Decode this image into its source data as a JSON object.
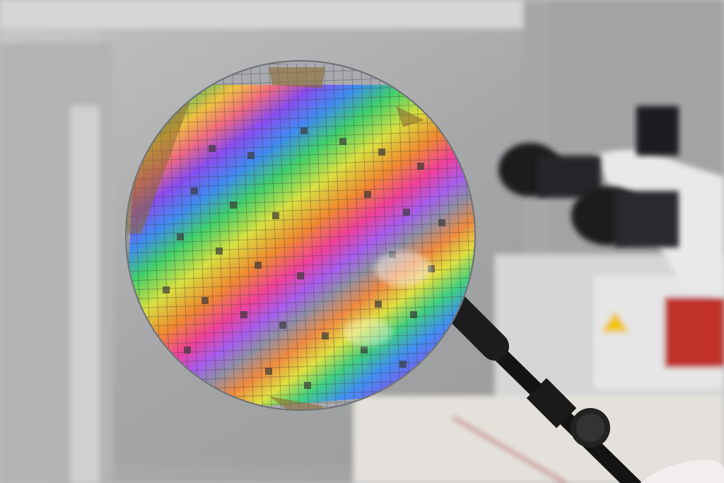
{
  "scene": {
    "subject": "silicon-wafer",
    "colors": {
      "background": "#b9b9b9",
      "background_dark": "#6f7174",
      "wafer_edge": "#8a8d90",
      "band_violet": "#7a3cf0",
      "band_blue": "#3f8cf0",
      "band_green": "#3fd06a",
      "band_yellow": "#f0e040",
      "band_orange": "#f08a30",
      "band_pink": "#f0409a",
      "tweezer": "#1a1a1a",
      "microscope_body": "#e8e8e8",
      "warning_label": "#f2c400",
      "red_panel": "#c0302a"
    }
  }
}
